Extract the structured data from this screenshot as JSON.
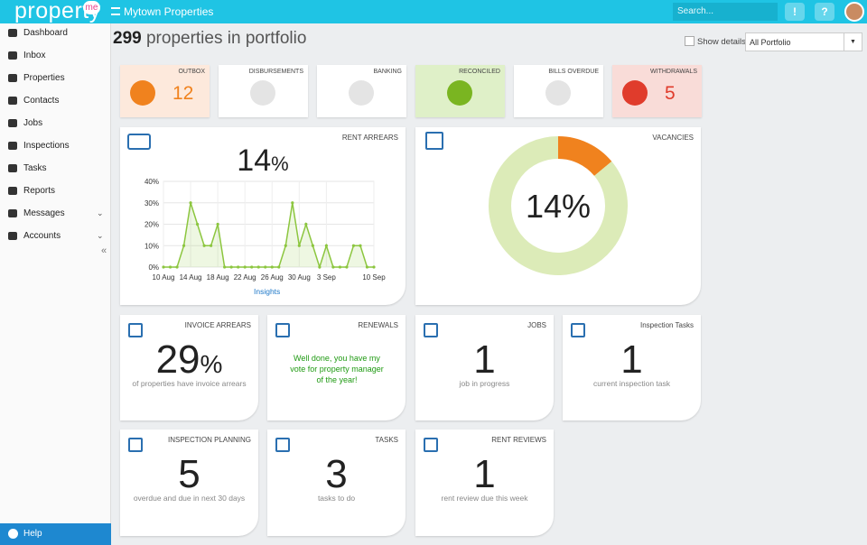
{
  "app": {
    "logo": "property",
    "logo_badge": "me",
    "title": "Mytown Properties",
    "search_placeholder": "Search...",
    "alert_button": "!",
    "help_button": "?"
  },
  "sidebar": {
    "items": [
      "Dashboard",
      "Inbox",
      "Properties",
      "Contacts",
      "Jobs",
      "Inspections",
      "Tasks",
      "Reports",
      "Messages",
      "Accounts"
    ],
    "collapse": "«",
    "help": "Help"
  },
  "header": {
    "count": "299",
    "title": "properties in portfolio",
    "show_details": "Show details",
    "portfolio": "All Portfolio"
  },
  "tiles": [
    {
      "label": "OUTBOX",
      "value": "12",
      "color": "#f0821e",
      "background": "#fde9dc"
    },
    {
      "label": "DISBURSEMENTS",
      "color": "#e4e4e4",
      "background": "#ffffff"
    },
    {
      "label": "BANKING",
      "color": "#e4e4e4",
      "background": "#ffffff"
    },
    {
      "label": "RECONCILED",
      "color": "#7ab521",
      "background": "#dff0c8"
    },
    {
      "label": "BILLS OVERDUE",
      "color": "#e4e4e4",
      "background": "#ffffff"
    },
    {
      "label": "WITHDRAWALS",
      "value": "5",
      "color": "#e03c2c",
      "background": "#f9dcd8"
    }
  ],
  "rent_arrears": {
    "title": "RENT ARREARS",
    "value": "14",
    "unit": "%",
    "link": "Insights",
    "chart": {
      "type": "line",
      "color": "#8cc63f",
      "categories": [
        "10 Aug",
        null,
        null,
        null,
        "14 Aug",
        null,
        null,
        null,
        "18 Aug",
        null,
        null,
        null,
        "22 Aug",
        null,
        null,
        null,
        "26 Aug",
        null,
        null,
        null,
        "30 Aug",
        null,
        null,
        null,
        "3 Sep",
        null,
        null,
        null,
        null,
        null,
        null,
        "10 Sep"
      ],
      "values": [
        0,
        0,
        0,
        10,
        30,
        20,
        10,
        10,
        20,
        0,
        0,
        0,
        0,
        0,
        0,
        0,
        0,
        0,
        10,
        30,
        10,
        20,
        10,
        0,
        10,
        0,
        0,
        0,
        10,
        10,
        0,
        0
      ],
      "ylim": [
        0,
        40
      ],
      "yticks": [
        {
          "value": 0,
          "label": "0%"
        },
        {
          "value": 10,
          "label": "10%"
        },
        {
          "value": 20,
          "label": "20%"
        },
        {
          "value": 30,
          "label": "30%"
        },
        {
          "value": 40,
          "label": "40%"
        }
      ],
      "grid": true
    }
  },
  "vacancies": {
    "title": "VACANCIES",
    "chart": {
      "type": "pie",
      "center_label": "14%",
      "values": [
        14,
        86
      ],
      "colors": [
        "#f0821e",
        "#dcebb8"
      ]
    }
  },
  "cards": [
    {
      "title": "INVOICE ARREARS",
      "value": "29",
      "unit": "%",
      "subtitle": "of properties have invoice arrears"
    },
    {
      "title": "RENEWALS",
      "message": "Well done, you have my vote for property manager of the year!"
    },
    {
      "title": "JOBS",
      "value": "1",
      "subtitle": "job in progress"
    },
    {
      "title": "Inspection Tasks",
      "value": "1",
      "subtitle": "current inspection task"
    },
    {
      "title": "INSPECTION PLANNING",
      "value": "5",
      "subtitle": "overdue and due in next 30 days"
    },
    {
      "title": "TASKS",
      "value": "3",
      "subtitle": "tasks to do"
    },
    {
      "title": "RENT REVIEWS",
      "value": "1",
      "subtitle": "rent review due this week"
    }
  ]
}
